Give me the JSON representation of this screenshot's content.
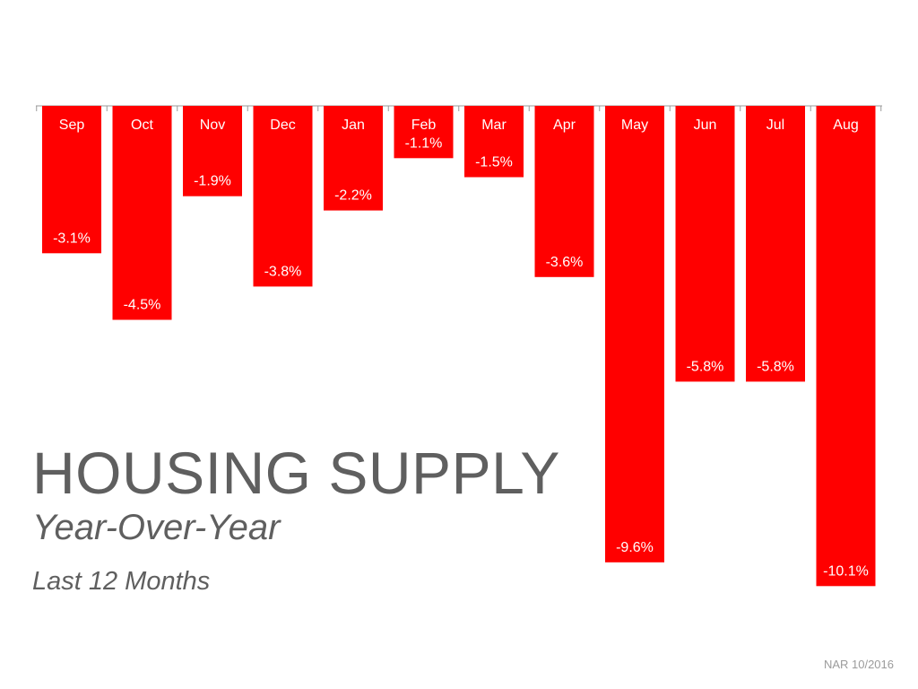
{
  "title": "HOUSING SUPPLY",
  "subtitle": "Year-Over-Year",
  "subtitle2": "Last 12 Months",
  "source": "NAR 10/2016",
  "colors": {
    "bar": "#ff0000",
    "bar_text": "#ffffff",
    "axis": "#9a9a9a",
    "title": "#5f5f5f",
    "source": "#9b9b9b"
  },
  "chart_data": {
    "type": "bar",
    "title": "HOUSING SUPPLY",
    "subtitle": "Year-Over-Year",
    "categories": [
      "Sep",
      "Oct",
      "Nov",
      "Dec",
      "Jan",
      "Feb",
      "Mar",
      "Apr",
      "May",
      "Jun",
      "Jul",
      "Aug"
    ],
    "values": [
      -3.1,
      -4.5,
      -1.9,
      -3.8,
      -2.2,
      -1.1,
      -1.5,
      -3.6,
      -9.6,
      -5.8,
      -5.8,
      -10.1
    ],
    "data_labels": [
      "-3.1%",
      "-4.5%",
      "-1.9%",
      "-3.8%",
      "-2.2%",
      "-1.1%",
      "-1.5%",
      "-3.6%",
      "-9.6%",
      "-5.8%",
      "-5.8%",
      "-10.1%"
    ],
    "ylim": [
      -10.1,
      0
    ],
    "grid": false,
    "legend": "none",
    "category_labels_position": "inside-top"
  }
}
